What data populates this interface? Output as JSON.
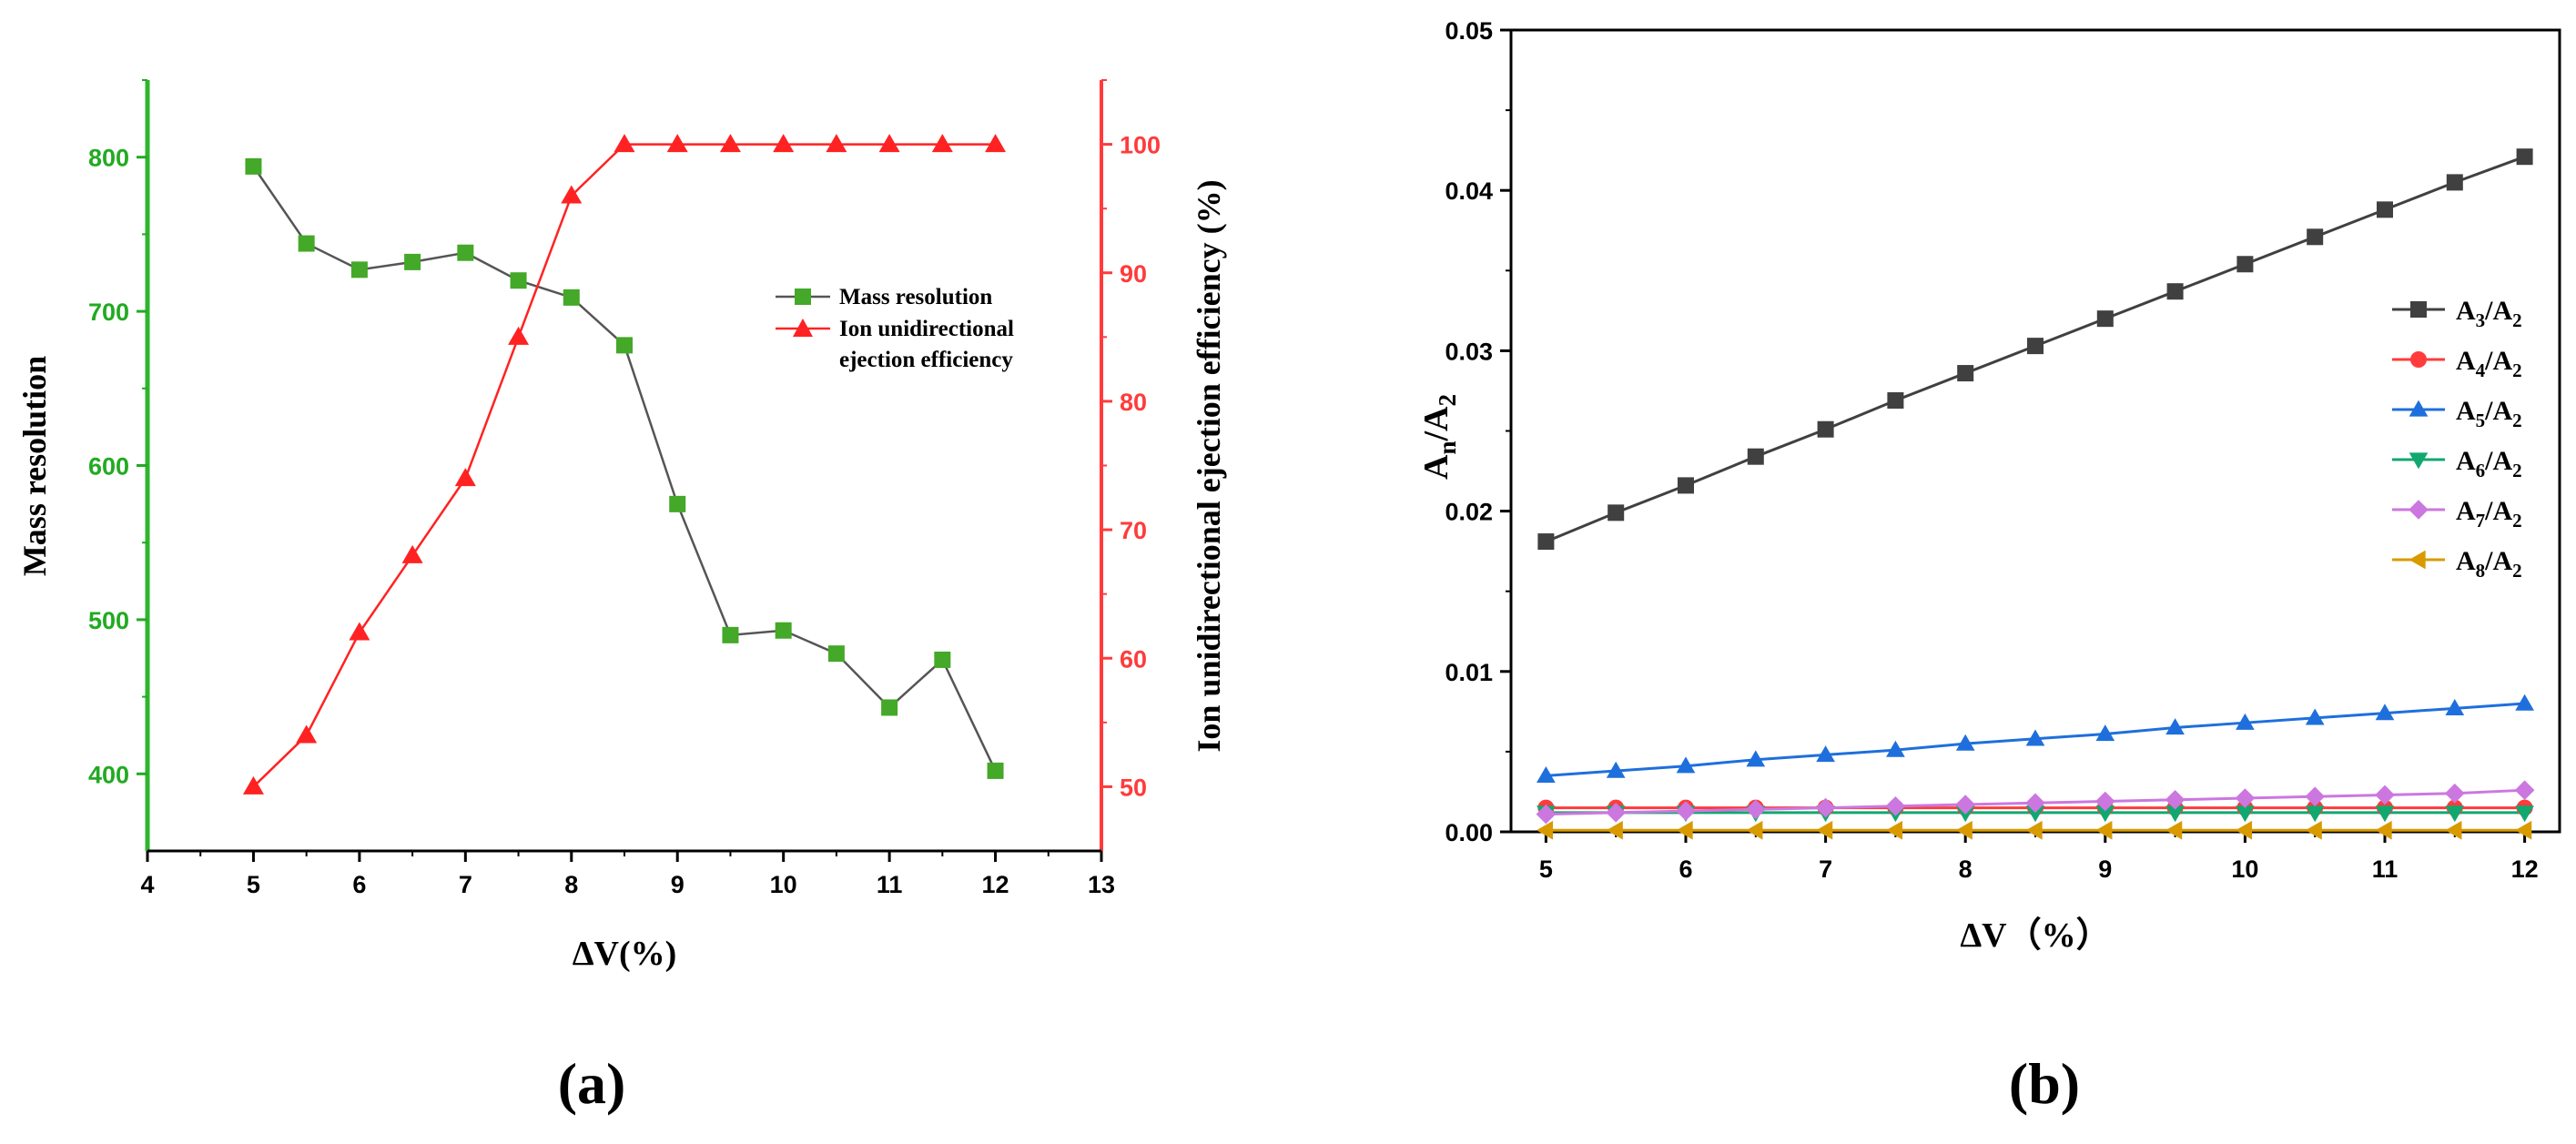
{
  "chart_data": [
    {
      "type": "line",
      "panel_label": "(a)",
      "xlabel": "ΔV(%)",
      "ylabel": "Mass resolution",
      "y2label": "Ion unidirectional ejection efficiency (%)",
      "xlim": [
        4,
        13
      ],
      "ylim": [
        350,
        850
      ],
      "y2lim": [
        45,
        105
      ],
      "x_ticks": [
        "4",
        "5",
        "6",
        "7",
        "8",
        "9",
        "10",
        "11",
        "12",
        "13"
      ],
      "y_ticks": [
        "400",
        "500",
        "600",
        "700",
        "800"
      ],
      "y2_ticks": [
        "50",
        "60",
        "70",
        "80",
        "90",
        "100"
      ],
      "colors": {
        "left_axis": "#22aa22",
        "right_axis": "#ff3b3b",
        "series1": "#555555",
        "series1_marker": "#44a828",
        "series2": "#ff2222"
      },
      "legend": {
        "placement": "center-right",
        "entries": [
          "Mass resolution",
          "Ion unidirectional",
          "ejection efficiency"
        ]
      },
      "series": [
        {
          "name": "Mass resolution",
          "axis": "left",
          "marker": "square",
          "x": [
            5,
            5.5,
            6,
            6.5,
            7,
            7.5,
            8,
            8.5,
            9,
            9.5,
            10,
            10.5,
            11,
            11.5,
            12
          ],
          "values": [
            794,
            744,
            727,
            732,
            738,
            720,
            709,
            678,
            575,
            490,
            493,
            478,
            443,
            474,
            402
          ]
        },
        {
          "name": "Ion unidirectional ejection efficiency",
          "axis": "right",
          "marker": "triangle",
          "x": [
            5,
            5.5,
            6,
            6.5,
            7,
            7.5,
            8,
            8.5,
            9,
            9.5,
            10,
            10.5,
            11,
            11.5,
            12
          ],
          "values": [
            50,
            54,
            62,
            68,
            74,
            85,
            96,
            100,
            100,
            100,
            100,
            100,
            100,
            100,
            100
          ]
        }
      ]
    },
    {
      "type": "line",
      "panel_label": "(b)",
      "xlabel": "ΔV（%）",
      "ylabel": "An/A2",
      "ylabel_parts": {
        "main": "A",
        "sub1": "n",
        "mid": "/A",
        "sub2": "2"
      },
      "xlim": [
        4.75,
        12.25
      ],
      "ylim": [
        0,
        0.05
      ],
      "x_ticks": [
        "5",
        "6",
        "7",
        "8",
        "9",
        "10",
        "11",
        "12"
      ],
      "y_ticks": [
        "0.00",
        "0.01",
        "0.02",
        "0.03",
        "0.04",
        "0.05"
      ],
      "legend": {
        "placement": "right"
      },
      "series": [
        {
          "name": "A3/A2",
          "label_main": "A",
          "label_sub": "3",
          "label_mid": "/A",
          "label_sub2": "2",
          "color": "#404040",
          "marker": "square",
          "x": [
            5,
            5.5,
            6,
            6.5,
            7,
            7.5,
            8,
            8.5,
            9,
            9.5,
            10,
            10.5,
            11,
            11.5,
            12
          ],
          "values": [
            0.0181,
            0.0199,
            0.0216,
            0.0234,
            0.0251,
            0.0269,
            0.0286,
            0.0303,
            0.032,
            0.0337,
            0.0354,
            0.0371,
            0.0388,
            0.0405,
            0.0421
          ]
        },
        {
          "name": "A4/A2",
          "label_main": "A",
          "label_sub": "4",
          "label_mid": "/A",
          "label_sub2": "2",
          "color": "#ff3b3b",
          "marker": "circle",
          "x": [
            5,
            5.5,
            6,
            6.5,
            7,
            7.5,
            8,
            8.5,
            9,
            9.5,
            10,
            10.5,
            11,
            11.5,
            12
          ],
          "values": [
            0.0015,
            0.0015,
            0.0015,
            0.0015,
            0.0015,
            0.0015,
            0.0015,
            0.0015,
            0.0015,
            0.0015,
            0.0015,
            0.0015,
            0.0015,
            0.0015,
            0.0015
          ]
        },
        {
          "name": "A5/A2",
          "label_main": "A",
          "label_sub": "5",
          "label_mid": "/A",
          "label_sub2": "2",
          "color": "#1e6fdc",
          "marker": "triangle",
          "x": [
            5,
            5.5,
            6,
            6.5,
            7,
            7.5,
            8,
            8.5,
            9,
            9.5,
            10,
            10.5,
            11,
            11.5,
            12
          ],
          "values": [
            0.0035,
            0.0038,
            0.0041,
            0.0045,
            0.0048,
            0.0051,
            0.0055,
            0.0058,
            0.0061,
            0.0065,
            0.0068,
            0.0071,
            0.0074,
            0.0077,
            0.008
          ]
        },
        {
          "name": "A6/A2",
          "label_main": "A",
          "label_sub": "6",
          "label_mid": "/A",
          "label_sub2": "2",
          "color": "#11a870",
          "marker": "triangle-down",
          "x": [
            5,
            5.5,
            6,
            6.5,
            7,
            7.5,
            8,
            8.5,
            9,
            9.5,
            10,
            10.5,
            11,
            11.5,
            12
          ],
          "values": [
            0.0012,
            0.0012,
            0.0012,
            0.0012,
            0.0012,
            0.0012,
            0.0012,
            0.0012,
            0.0012,
            0.0012,
            0.0012,
            0.0012,
            0.0012,
            0.0012,
            0.0012
          ]
        },
        {
          "name": "A7/A2",
          "label_main": "A",
          "label_sub": "7",
          "label_mid": "/A",
          "label_sub2": "2",
          "color": "#cc77e0",
          "marker": "diamond",
          "x": [
            5,
            5.5,
            6,
            6.5,
            7,
            7.5,
            8,
            8.5,
            9,
            9.5,
            10,
            10.5,
            11,
            11.5,
            12
          ],
          "values": [
            0.0011,
            0.0012,
            0.0013,
            0.0014,
            0.0015,
            0.0016,
            0.0017,
            0.0018,
            0.0019,
            0.002,
            0.0021,
            0.0022,
            0.0023,
            0.0024,
            0.0026
          ]
        },
        {
          "name": "A8/A2",
          "label_main": "A",
          "label_sub": "8",
          "label_mid": "/A",
          "label_sub2": "2",
          "color": "#d99a00",
          "marker": "triangle-left",
          "x": [
            5,
            5.5,
            6,
            6.5,
            7,
            7.5,
            8,
            8.5,
            9,
            9.5,
            10,
            10.5,
            11,
            11.5,
            12
          ],
          "values": [
            0.0001,
            0.0001,
            0.0001,
            0.0001,
            0.0001,
            0.0001,
            0.0001,
            0.0001,
            0.0001,
            0.0001,
            0.0001,
            0.0001,
            0.0001,
            0.0001,
            0.0001
          ]
        }
      ]
    }
  ]
}
